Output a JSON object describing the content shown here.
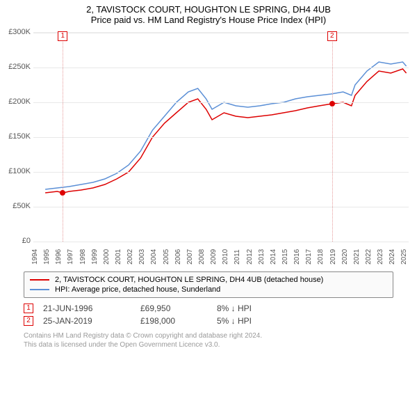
{
  "title": "2, TAVISTOCK COURT, HOUGHTON LE SPRING, DH4 4UB",
  "subtitle": "Price paid vs. HM Land Registry's House Price Index (HPI)",
  "chart": {
    "type": "line",
    "background_color": "#ffffff",
    "grid_color": "#e8e8e8",
    "xlim": [
      1994,
      2025.5
    ],
    "ylim": [
      0,
      300000
    ],
    "ytick_step": 50000,
    "yticks": [
      "£0",
      "£50K",
      "£100K",
      "£150K",
      "£200K",
      "£250K",
      "£300K"
    ],
    "xticks": [
      1994,
      1995,
      1996,
      1997,
      1998,
      1999,
      2000,
      2001,
      2002,
      2003,
      2004,
      2005,
      2006,
      2007,
      2008,
      2009,
      2010,
      2011,
      2012,
      2013,
      2014,
      2015,
      2016,
      2017,
      2018,
      2019,
      2020,
      2021,
      2022,
      2023,
      2024,
      2025
    ],
    "label_fontsize": 11,
    "series": [
      {
        "name": "price_paid",
        "label": "2, TAVISTOCK COURT, HOUGHTON LE SPRING, DH4 4UB (detached house)",
        "color": "#dd0000",
        "width": 1.5,
        "data": [
          [
            1995.0,
            70000
          ],
          [
            1996.0,
            72000
          ],
          [
            1996.5,
            69950
          ],
          [
            1997.0,
            72000
          ],
          [
            1998.0,
            74000
          ],
          [
            1999.0,
            77000
          ],
          [
            2000.0,
            82000
          ],
          [
            2001.0,
            90000
          ],
          [
            2002.0,
            100000
          ],
          [
            2003.0,
            120000
          ],
          [
            2004.0,
            150000
          ],
          [
            2005.0,
            170000
          ],
          [
            2006.0,
            185000
          ],
          [
            2007.0,
            200000
          ],
          [
            2007.8,
            205000
          ],
          [
            2008.5,
            190000
          ],
          [
            2009.0,
            175000
          ],
          [
            2010.0,
            185000
          ],
          [
            2011.0,
            180000
          ],
          [
            2012.0,
            178000
          ],
          [
            2013.0,
            180000
          ],
          [
            2014.0,
            182000
          ],
          [
            2015.0,
            185000
          ],
          [
            2016.0,
            188000
          ],
          [
            2017.0,
            192000
          ],
          [
            2018.0,
            195000
          ],
          [
            2019.07,
            198000
          ],
          [
            2020.0,
            200000
          ],
          [
            2020.7,
            195000
          ],
          [
            2021.0,
            210000
          ],
          [
            2022.0,
            230000
          ],
          [
            2023.0,
            245000
          ],
          [
            2024.0,
            242000
          ],
          [
            2025.0,
            248000
          ],
          [
            2025.3,
            242000
          ]
        ]
      },
      {
        "name": "hpi",
        "label": "HPI: Average price, detached house, Sunderland",
        "color": "#5b8fd6",
        "width": 1.5,
        "data": [
          [
            1995.0,
            75000
          ],
          [
            1996.0,
            77000
          ],
          [
            1997.0,
            79000
          ],
          [
            1998.0,
            82000
          ],
          [
            1999.0,
            85000
          ],
          [
            2000.0,
            90000
          ],
          [
            2001.0,
            98000
          ],
          [
            2002.0,
            110000
          ],
          [
            2003.0,
            130000
          ],
          [
            2004.0,
            160000
          ],
          [
            2005.0,
            180000
          ],
          [
            2006.0,
            200000
          ],
          [
            2007.0,
            215000
          ],
          [
            2007.8,
            220000
          ],
          [
            2008.5,
            205000
          ],
          [
            2009.0,
            190000
          ],
          [
            2010.0,
            200000
          ],
          [
            2011.0,
            195000
          ],
          [
            2012.0,
            193000
          ],
          [
            2013.0,
            195000
          ],
          [
            2014.0,
            198000
          ],
          [
            2015.0,
            200000
          ],
          [
            2016.0,
            205000
          ],
          [
            2017.0,
            208000
          ],
          [
            2018.0,
            210000
          ],
          [
            2019.0,
            212000
          ],
          [
            2020.0,
            215000
          ],
          [
            2020.7,
            210000
          ],
          [
            2021.0,
            225000
          ],
          [
            2022.0,
            245000
          ],
          [
            2023.0,
            258000
          ],
          [
            2024.0,
            255000
          ],
          [
            2025.0,
            258000
          ],
          [
            2025.3,
            252000
          ]
        ]
      }
    ],
    "markers": [
      {
        "n": "1",
        "x": 1996.47,
        "color": "#dd0000",
        "line_color": "#e59999",
        "point_y": 69950
      },
      {
        "n": "2",
        "x": 2019.07,
        "color": "#dd0000",
        "line_color": "#e59999",
        "point_y": 198000
      }
    ]
  },
  "legend": {
    "items": [
      {
        "color": "#dd0000",
        "label": "2, TAVISTOCK COURT, HOUGHTON LE SPRING, DH4 4UB (detached house)"
      },
      {
        "color": "#5b8fd6",
        "label": "HPI: Average price, detached house, Sunderland"
      }
    ]
  },
  "sales": [
    {
      "n": "1",
      "color": "#dd0000",
      "date": "21-JUN-1996",
      "price": "£69,950",
      "delta": "8% ↓ HPI"
    },
    {
      "n": "2",
      "color": "#dd0000",
      "date": "25-JAN-2019",
      "price": "£198,000",
      "delta": "5% ↓ HPI"
    }
  ],
  "footer": {
    "line1": "Contains HM Land Registry data © Crown copyright and database right 2024.",
    "line2": "This data is licensed under the Open Government Licence v3.0."
  }
}
